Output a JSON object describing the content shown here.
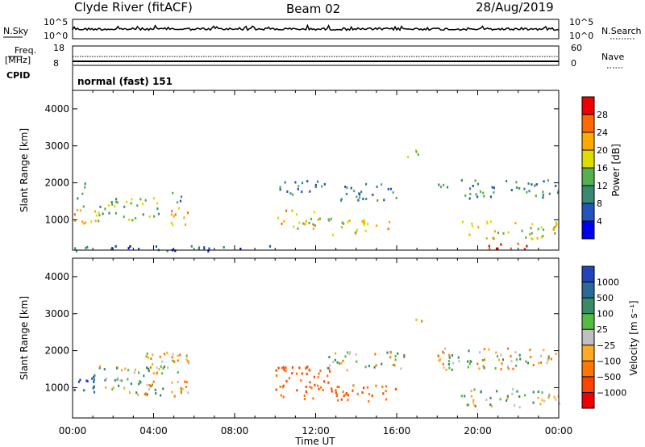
{
  "header": {
    "station": "Clyde River (fitACF)",
    "beam": "Beam 02",
    "date": "28/Aug/2019"
  },
  "small_panels": {
    "nsky_label": "N.Sky",
    "nsky_ticks": [
      "10^5",
      "10^0"
    ],
    "nsearch_label": "N.Search",
    "nsearch_ticks": [
      "10^5",
      "10^0"
    ],
    "freq_label": "Freq.",
    "freq_unit": "[MHz]",
    "freq_ticks": [
      "18",
      "8"
    ],
    "nave_label": "Nave",
    "nave_ticks": [
      "60",
      "0"
    ],
    "cpid_label": "CPID",
    "cpid_value": "normal (fast) 151"
  },
  "colors": {
    "power_scale": [
      "#0000ee",
      "#2255bb",
      "#3a8a72",
      "#55b050",
      "#dddd00",
      "#ffaa00",
      "#ff6a00",
      "#ee0000"
    ],
    "velocity_scale": [
      "#2244bb",
      "#2a6a9a",
      "#3a8a6a",
      "#55bb44",
      "#c0c0c0",
      "#ffaa22",
      "#ff7700",
      "#ff4400",
      "#ee0000"
    ]
  },
  "chart_data": [
    {
      "type": "heatmap",
      "title": "Power",
      "ylabel": "Slant Range [km]",
      "xlabel": "",
      "ylim": [
        180,
        4500
      ],
      "yticks": [
        "1000",
        "2000",
        "3000",
        "4000"
      ],
      "xticks": [
        "00:00",
        "04:00",
        "08:00",
        "12:00",
        "16:00",
        "20:00",
        "00:00"
      ],
      "colorbar_label": "Power [dB]",
      "colorbar_ticks": [
        "4",
        "8",
        "12",
        "16",
        "20",
        "24",
        "28"
      ],
      "colorbar_range": [
        0,
        32
      ],
      "regions": [
        {
          "t0": 0.0,
          "t1": 1.2,
          "r0": 900,
          "r1": 1300,
          "value": 20
        },
        {
          "t0": 0.0,
          "t1": 0.6,
          "r0": 1300,
          "r1": 2100,
          "value": 10
        },
        {
          "t0": 1.2,
          "t1": 4.5,
          "r0": 1000,
          "r1": 1700,
          "value": 14
        },
        {
          "t0": 4.5,
          "t1": 5.7,
          "r0": 800,
          "r1": 1300,
          "value": 24
        },
        {
          "t0": 4.8,
          "t1": 5.6,
          "r0": 1300,
          "r1": 1900,
          "value": 12
        },
        {
          "t0": 0.0,
          "t1": 10.0,
          "r0": 180,
          "r1": 320,
          "value": 6
        },
        {
          "t0": 10.0,
          "t1": 12.5,
          "r0": 1700,
          "r1": 2100,
          "value": 10
        },
        {
          "t0": 10.0,
          "t1": 12.0,
          "r0": 750,
          "r1": 1300,
          "value": 20
        },
        {
          "t0": 12.0,
          "t1": 14.5,
          "r0": 600,
          "r1": 1100,
          "value": 18
        },
        {
          "t0": 14.3,
          "t1": 15.8,
          "r0": 700,
          "r1": 1100,
          "value": 22
        },
        {
          "t0": 13.0,
          "t1": 16.0,
          "r0": 1500,
          "r1": 2000,
          "value": 10
        },
        {
          "t0": 16.5,
          "t1": 17.2,
          "r0": 2700,
          "r1": 2950,
          "value": 14
        },
        {
          "t0": 18.0,
          "t1": 24.0,
          "r0": 1600,
          "r1": 2100,
          "value": 10
        },
        {
          "t0": 19.0,
          "t1": 24.0,
          "r0": 500,
          "r1": 1000,
          "value": 18
        },
        {
          "t0": 20.5,
          "t1": 22.5,
          "r0": 180,
          "r1": 420,
          "value": 28
        }
      ]
    },
    {
      "type": "heatmap",
      "title": "Velocity",
      "ylabel": "Slant Range [km]",
      "xlabel": "Time UT",
      "ylim": [
        180,
        4500
      ],
      "yticks": [
        "1000",
        "2000",
        "3000",
        "4000"
      ],
      "xticks": [
        "00:00",
        "04:00",
        "08:00",
        "12:00",
        "16:00",
        "20:00",
        "00:00"
      ],
      "colorbar_label": "Velocity [m s⁻¹]",
      "colorbar_ticks": [
        "1000",
        "500",
        "100",
        "25",
        "−25",
        "−100",
        "−500",
        "−1000"
      ],
      "regions": [
        {
          "t0": 0.0,
          "t1": 1.2,
          "r0": 900,
          "r1": 1500,
          "value": 1000
        },
        {
          "t0": 1.0,
          "t1": 4.5,
          "r0": 800,
          "r1": 1700,
          "value": 100
        },
        {
          "t0": 3.5,
          "t1": 5.7,
          "r0": 800,
          "r1": 2000,
          "value": -100
        },
        {
          "t0": 10.0,
          "t1": 13.0,
          "r0": 700,
          "r1": 1600,
          "value": -500
        },
        {
          "t0": 12.0,
          "t1": 16.0,
          "r0": 650,
          "r1": 1100,
          "value": -500
        },
        {
          "t0": 12.5,
          "t1": 16.5,
          "r0": 1500,
          "r1": 2000,
          "value": 0
        },
        {
          "t0": 18.0,
          "t1": 24.0,
          "r0": 1500,
          "r1": 2100,
          "value": 0
        },
        {
          "t0": 19.0,
          "t1": 24.0,
          "r0": 500,
          "r1": 1000,
          "value": 100
        },
        {
          "t0": 16.5,
          "t1": 17.2,
          "r0": 2800,
          "r1": 2950,
          "value": 0
        }
      ]
    }
  ]
}
